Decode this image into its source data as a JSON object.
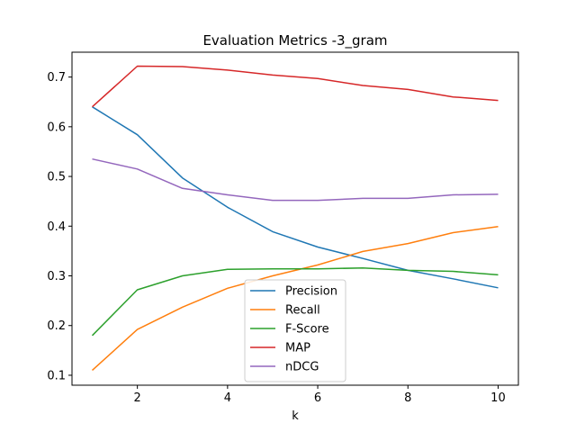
{
  "chart_data": {
    "type": "line",
    "title": "Evaluation Metrics -3_gram",
    "xlabel": "k",
    "ylabel": "",
    "x": [
      1,
      2,
      3,
      4,
      5,
      6,
      7,
      8,
      9,
      10
    ],
    "xlim": [
      0.55,
      10.45
    ],
    "ylim": [
      0.08,
      0.75
    ],
    "xticks": [
      2,
      4,
      6,
      8,
      10
    ],
    "yticks": [
      0.1,
      0.2,
      0.3,
      0.4,
      0.5,
      0.6,
      0.7
    ],
    "ytick_labels": [
      "0.1",
      "0.2",
      "0.3",
      "0.4",
      "0.5",
      "0.6",
      "0.7"
    ],
    "grid": false,
    "legend_position": "lower-center",
    "series": [
      {
        "name": "Precision",
        "color": "#1f77b4",
        "values": [
          0.64,
          0.584,
          0.497,
          0.438,
          0.389,
          0.358,
          0.335,
          0.311,
          0.294,
          0.276
        ]
      },
      {
        "name": "Recall",
        "color": "#ff7f0e",
        "values": [
          0.11,
          0.192,
          0.237,
          0.275,
          0.3,
          0.322,
          0.349,
          0.365,
          0.387,
          0.399
        ]
      },
      {
        "name": "F-Score",
        "color": "#2ca02c",
        "values": [
          0.18,
          0.272,
          0.3,
          0.313,
          0.314,
          0.314,
          0.316,
          0.311,
          0.309,
          0.302
        ]
      },
      {
        "name": "MAP",
        "color": "#d62728",
        "values": [
          0.64,
          0.722,
          0.721,
          0.714,
          0.704,
          0.697,
          0.683,
          0.675,
          0.66,
          0.653
        ]
      },
      {
        "name": "nDCG",
        "color": "#9467bd",
        "values": [
          0.535,
          0.515,
          0.476,
          0.463,
          0.452,
          0.452,
          0.456,
          0.456,
          0.463,
          0.464
        ]
      }
    ]
  }
}
